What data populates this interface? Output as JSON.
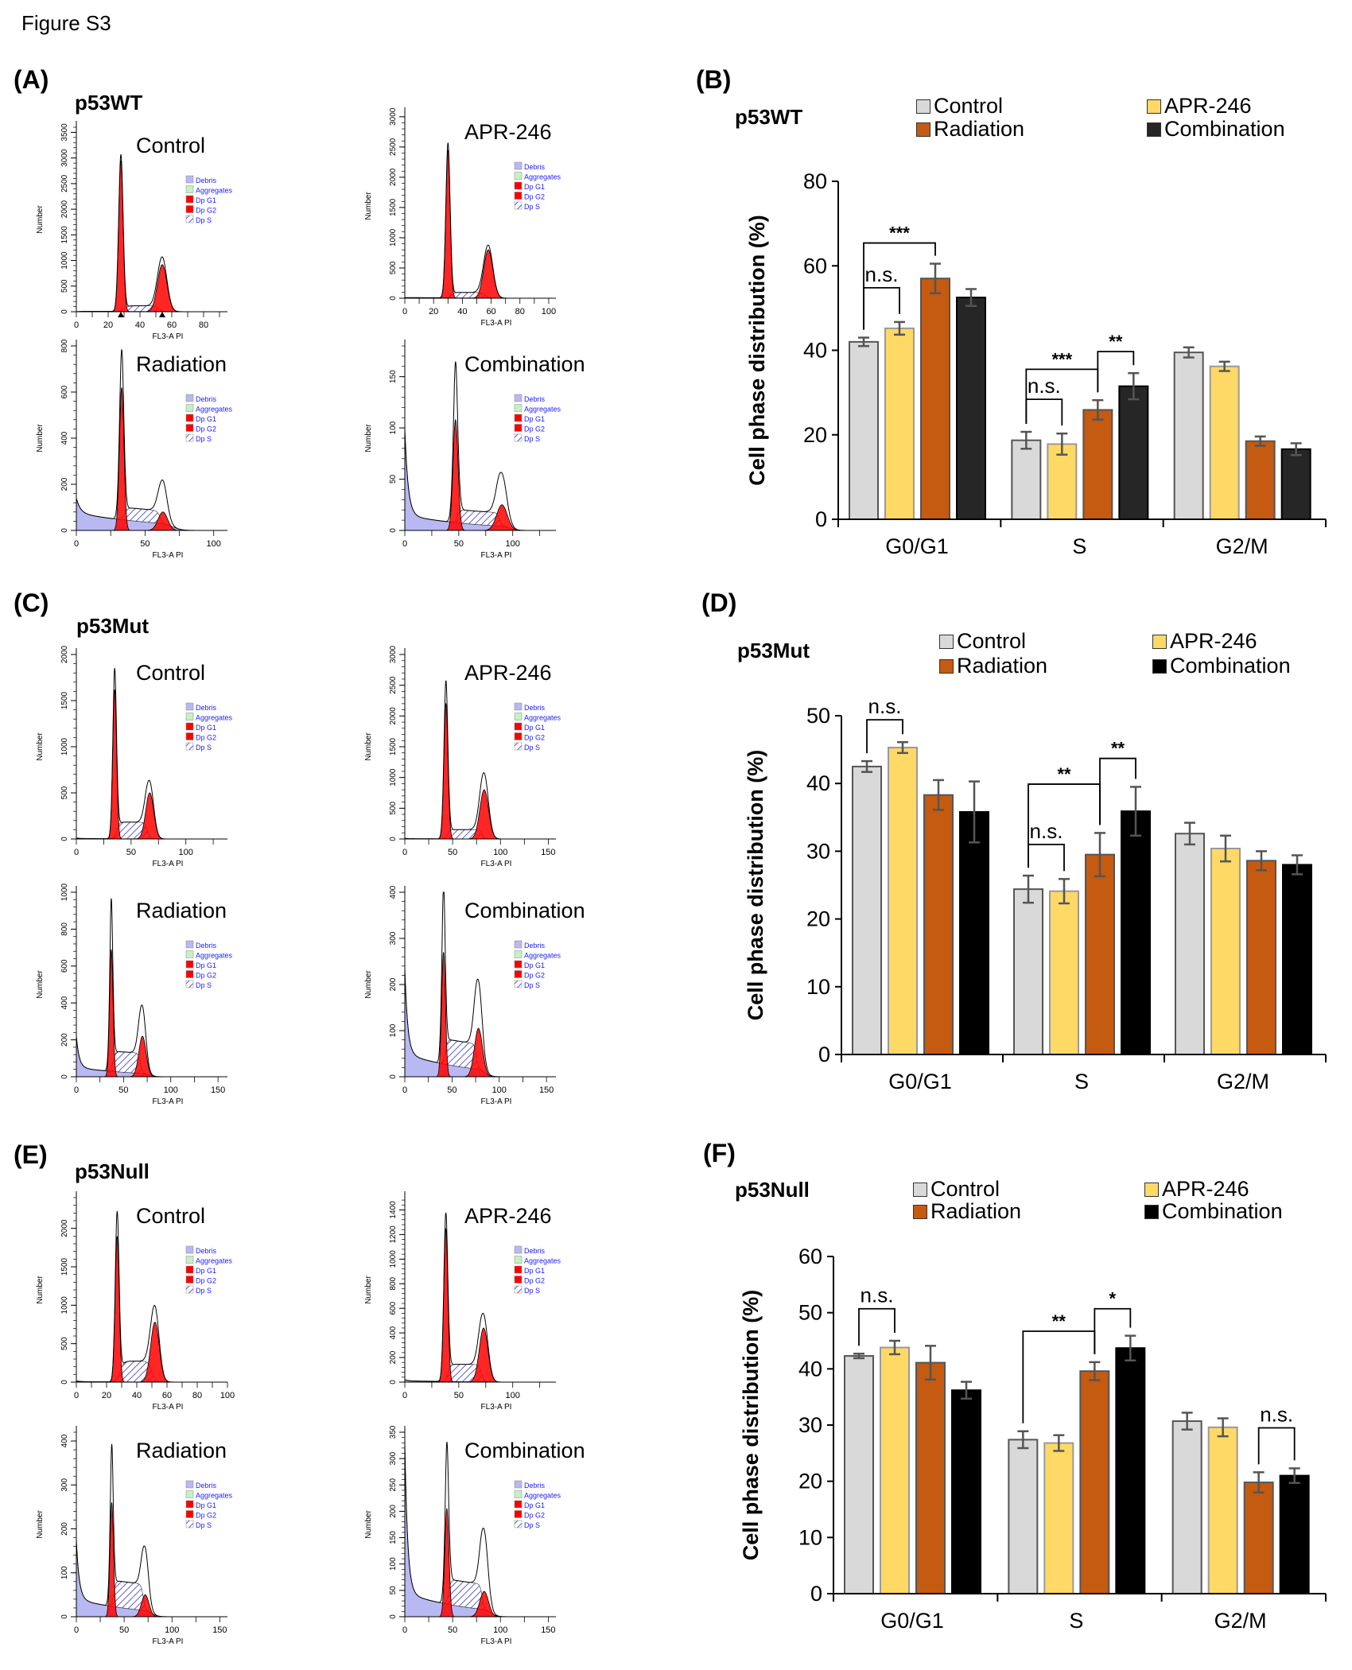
{
  "figure_title": "Figure S3",
  "colors": {
    "control": "#d9d9d9",
    "apr246": "#ffd966",
    "radiation": "#c55a11",
    "combination_wt": "#262626",
    "combination": "#000000",
    "debris": "#b8b8f2",
    "aggregates": "#c6f0c6",
    "dip_g1": "#ff0000",
    "dip_s_hatch": "#3030c0",
    "histogram_legend_text": "#1a1aff",
    "error_bar": "#555555"
  },
  "histogram_common": {
    "y_label": "Number",
    "x_label": "FL3-A PI",
    "legend": [
      "Debris",
      "Aggregates",
      "Dp G1",
      "Dp G2",
      "Dp S"
    ]
  },
  "sections": [
    {
      "letter": "(A)",
      "genotype": "p53WT"
    },
    {
      "letter": "(C)",
      "genotype": "p53Mut"
    },
    {
      "letter": "(E)",
      "genotype": "p53Null"
    }
  ],
  "bar_panels": [
    {
      "letter": "(B)",
      "genotype": "p53WT"
    },
    {
      "letter": "(D)",
      "genotype": "p53Mut"
    },
    {
      "letter": "(F)",
      "genotype": "p53Null"
    }
  ],
  "chart_data": [
    {
      "panel": "A",
      "type": "area",
      "title": "Control",
      "y_ticks": [
        0,
        500,
        1000,
        1500,
        2000,
        2500,
        3000,
        3500
      ],
      "x_ticks": [
        0,
        20,
        40,
        60,
        80
      ],
      "x_range": [
        0,
        95
      ],
      "y_range": [
        0,
        3600
      ],
      "g1": {
        "x": 28,
        "peak": 3050,
        "fit": 2950
      },
      "g2": {
        "x": 54,
        "peak": 1050,
        "fit": 920
      },
      "s_level": 110,
      "debris_start": 0,
      "debris_floor": 10,
      "markers": [
        28,
        54
      ]
    },
    {
      "panel": "A",
      "type": "area",
      "title": "APR-246",
      "y_ticks": [
        0,
        500,
        1000,
        1500,
        2000,
        2500,
        3000
      ],
      "x_ticks": [
        0,
        20,
        40,
        60,
        80,
        100
      ],
      "x_range": [
        0,
        105
      ],
      "y_range": [
        0,
        3050
      ],
      "g1": {
        "x": 30,
        "peak": 2550,
        "fit": 2450
      },
      "g2": {
        "x": 58,
        "peak": 860,
        "fit": 800
      },
      "s_level": 90,
      "debris_start": 10,
      "debris_floor": 10
    },
    {
      "panel": "A",
      "type": "area",
      "title": "Radiation",
      "y_ticks": [
        0,
        200,
        400,
        600,
        800
      ],
      "x_ticks": [
        0,
        50,
        100
      ],
      "x_range": [
        0,
        110
      ],
      "y_range": [
        0,
        800
      ],
      "g1": {
        "x": 33,
        "peak": 730,
        "fit": 620
      },
      "g2": {
        "x": 63,
        "peak": 180,
        "fit": 80
      },
      "s_level": 55,
      "debris_start": 140,
      "debris_floor": 75
    },
    {
      "panel": "A",
      "type": "area",
      "title": "Combination",
      "y_ticks": [
        0,
        50,
        100,
        150
      ],
      "x_ticks": [
        0,
        50,
        100
      ],
      "x_range": [
        0,
        140
      ],
      "y_range": [
        0,
        180
      ],
      "g1": {
        "x": 47,
        "peak": 155,
        "fit": 108
      },
      "g2": {
        "x": 90,
        "peak": 50,
        "fit": 25
      },
      "s_level": 13,
      "debris_start": 100,
      "debris_floor": 15
    },
    {
      "panel": "C",
      "type": "area",
      "title": "Control",
      "y_ticks": [
        0,
        500,
        1000,
        1500,
        2000
      ],
      "x_ticks": [
        0,
        50,
        100
      ],
      "x_range": [
        0,
        138
      ],
      "y_range": [
        0,
        2000
      ],
      "g1": {
        "x": 35,
        "peak": 1820,
        "fit": 1620
      },
      "g2": {
        "x": 67,
        "peak": 600,
        "fit": 500
      },
      "s_level": 180,
      "debris_start": 10,
      "debris_floor": 5
    },
    {
      "panel": "C",
      "type": "area",
      "title": "APR-246",
      "y_ticks": [
        0,
        500,
        1000,
        1500,
        2000,
        2500,
        3000
      ],
      "x_ticks": [
        0,
        50,
        100,
        150
      ],
      "x_range": [
        0,
        158
      ],
      "y_range": [
        0,
        3000
      ],
      "g1": {
        "x": 43,
        "peak": 2550,
        "fit": 2200
      },
      "g2": {
        "x": 83,
        "peak": 1050,
        "fit": 800
      },
      "s_level": 150,
      "debris_start": 10,
      "debris_floor": 5
    },
    {
      "panel": "C",
      "type": "area",
      "title": "Radiation",
      "y_ticks": [
        0,
        200,
        400,
        600,
        800,
        1000
      ],
      "x_ticks": [
        0,
        50,
        100,
        150
      ],
      "x_range": [
        0,
        160
      ],
      "y_range": [
        0,
        1000
      ],
      "g1": {
        "x": 37,
        "peak": 920,
        "fit": 690
      },
      "g2": {
        "x": 70,
        "peak": 350,
        "fit": 220
      },
      "s_level": 110,
      "debris_start": 220,
      "debris_floor": 50
    },
    {
      "panel": "C",
      "type": "area",
      "title": "Combination",
      "y_ticks": [
        0,
        100,
        200,
        300,
        400
      ],
      "x_ticks": [
        0,
        50,
        100,
        150
      ],
      "x_range": [
        0,
        160
      ],
      "y_range": [
        0,
        400
      ],
      "g1": {
        "x": 41,
        "peak": 380,
        "fit": 270
      },
      "g2": {
        "x": 78,
        "peak": 185,
        "fit": 105
      },
      "s_level": 55,
      "debris_start": 235,
      "debris_floor": 50
    },
    {
      "panel": "E",
      "type": "area",
      "title": "Control",
      "y_ticks": [
        0,
        500,
        1000,
        1500,
        2000
      ],
      "x_ticks": [
        0,
        20,
        40,
        60,
        80,
        100
      ],
      "x_range": [
        0,
        100
      ],
      "y_range": [
        0,
        2400
      ],
      "g1": {
        "x": 27,
        "peak": 2180,
        "fit": 1900
      },
      "g2": {
        "x": 52,
        "peak": 950,
        "fit": 780
      },
      "s_level": 270,
      "debris_start": 15,
      "debris_floor": 5
    },
    {
      "panel": "E",
      "type": "area",
      "title": "APR-246",
      "y_ticks": [
        0,
        200,
        400,
        600,
        800,
        1000,
        1200,
        1400
      ],
      "x_ticks": [
        0,
        50,
        100
      ],
      "x_range": [
        0,
        140
      ],
      "y_range": [
        0,
        1500
      ],
      "g1": {
        "x": 38,
        "peak": 1350,
        "fit": 1250
      },
      "g2": {
        "x": 73,
        "peak": 530,
        "fit": 440
      },
      "s_level": 140,
      "debris_start": 20,
      "debris_floor": 10
    },
    {
      "panel": "E",
      "type": "area",
      "title": "Radiation",
      "y_ticks": [
        0,
        100,
        200,
        300,
        400
      ],
      "x_ticks": [
        0,
        50,
        100,
        150
      ],
      "x_range": [
        0,
        158
      ],
      "y_range": [
        0,
        420
      ],
      "g1": {
        "x": 37,
        "peak": 360,
        "fit": 260
      },
      "g2": {
        "x": 72,
        "peak": 135,
        "fit": 50
      },
      "s_level": 60,
      "debris_start": 175,
      "debris_floor": 40
    },
    {
      "panel": "E",
      "type": "area",
      "title": "Combination",
      "y_ticks": [
        0,
        50,
        100,
        150,
        200,
        250,
        300,
        350
      ],
      "x_ticks": [
        0,
        50,
        100,
        150
      ],
      "x_range": [
        0,
        158
      ],
      "y_range": [
        0,
        350
      ],
      "g1": {
        "x": 44,
        "peak": 300,
        "fit": 205
      },
      "g2": {
        "x": 83,
        "peak": 145,
        "fit": 48
      },
      "s_level": 48,
      "debris_start": 330,
      "debris_floor": 45
    },
    {
      "panel": "B",
      "type": "bar",
      "ylabel": "Cell phase distribution (%)",
      "ylim": [
        0,
        80
      ],
      "y_ticks": [
        0,
        20,
        40,
        60,
        80
      ],
      "categories": [
        "G0/G1",
        "S",
        "G2/M"
      ],
      "legend_placement": "top",
      "series": [
        {
          "name": "Control",
          "values": [
            42.0,
            18.7,
            39.5
          ],
          "errors": [
            1.0,
            2.0,
            1.2
          ]
        },
        {
          "name": "APR-246",
          "values": [
            45.2,
            17.8,
            36.2
          ],
          "errors": [
            1.5,
            2.5,
            1.1
          ]
        },
        {
          "name": "Radiation",
          "values": [
            57.0,
            25.9,
            18.5
          ],
          "errors": [
            3.5,
            2.3,
            1.1
          ]
        },
        {
          "name": "Combination",
          "values": [
            52.5,
            31.5,
            16.6
          ],
          "errors": [
            2.0,
            3.1,
            1.4
          ]
        }
      ],
      "significance": [
        {
          "category": 0,
          "from": 0,
          "to": 2,
          "y": 65.4,
          "label": "***"
        },
        {
          "category": 0,
          "from": 0,
          "to": 1,
          "y": 54.8,
          "label": "n.s."
        },
        {
          "category": 1,
          "from": 0,
          "to": 2,
          "y": 35.5,
          "label": "***"
        },
        {
          "category": 1,
          "from": 2,
          "to": 3,
          "y": 39.7,
          "label": "**"
        },
        {
          "category": 1,
          "from": 0,
          "to": 1,
          "y": 28.4,
          "label": "n.s."
        }
      ]
    },
    {
      "panel": "D",
      "type": "bar",
      "ylabel": "Cell phase distribution (%)",
      "ylim": [
        0,
        50
      ],
      "y_ticks": [
        0,
        10,
        20,
        30,
        40,
        50
      ],
      "categories": [
        "G0/G1",
        "S",
        "G2/M"
      ],
      "legend_placement": "top",
      "series": [
        {
          "name": "Control",
          "values": [
            42.5,
            24.4,
            32.6
          ],
          "errors": [
            0.8,
            2.0,
            1.6
          ]
        },
        {
          "name": "APR-246",
          "values": [
            45.3,
            24.1,
            30.4
          ],
          "errors": [
            0.8,
            1.8,
            1.9
          ]
        },
        {
          "name": "Radiation",
          "values": [
            38.3,
            29.5,
            28.6
          ],
          "errors": [
            2.2,
            3.2,
            1.4
          ]
        },
        {
          "name": "Combination",
          "values": [
            35.8,
            35.9,
            28.0
          ],
          "errors": [
            4.5,
            3.6,
            1.4
          ]
        }
      ],
      "significance": [
        {
          "category": 0,
          "from": 0,
          "to": 1,
          "y": 49.4,
          "label": "n.s."
        },
        {
          "category": 1,
          "from": 0,
          "to": 2,
          "y": 39.9,
          "label": "**"
        },
        {
          "category": 1,
          "from": 2,
          "to": 3,
          "y": 43.7,
          "label": "**"
        },
        {
          "category": 1,
          "from": 0,
          "to": 1,
          "y": 31.0,
          "label": "n.s."
        }
      ]
    },
    {
      "panel": "F",
      "type": "bar",
      "ylabel": "Cell phase distribution (%)",
      "ylim": [
        0,
        60
      ],
      "y_ticks": [
        0,
        10,
        20,
        30,
        40,
        50,
        60
      ],
      "categories": [
        "G0/G1",
        "S",
        "G2/M"
      ],
      "legend_placement": "top",
      "series": [
        {
          "name": "Control",
          "values": [
            42.3,
            27.4,
            30.7
          ],
          "errors": [
            0.4,
            1.5,
            1.5
          ]
        },
        {
          "name": "APR-246",
          "values": [
            43.8,
            26.8,
            29.6
          ],
          "errors": [
            1.2,
            1.4,
            1.6
          ]
        },
        {
          "name": "Radiation",
          "values": [
            41.1,
            39.6,
            19.8
          ],
          "errors": [
            3.0,
            1.6,
            1.8
          ]
        },
        {
          "name": "Combination",
          "values": [
            36.2,
            43.7,
            21.0
          ],
          "errors": [
            1.5,
            2.2,
            1.3
          ]
        }
      ],
      "significance": [
        {
          "category": 0,
          "from": 0,
          "to": 1,
          "y": 50.7,
          "label": "n.s."
        },
        {
          "category": 1,
          "from": 0,
          "to": 2,
          "y": 46.7,
          "label": "**"
        },
        {
          "category": 1,
          "from": 2,
          "to": 3,
          "y": 50.7,
          "label": "*"
        },
        {
          "category": 2,
          "from": 2,
          "to": 3,
          "y": 29.5,
          "label": "n.s."
        }
      ]
    }
  ]
}
